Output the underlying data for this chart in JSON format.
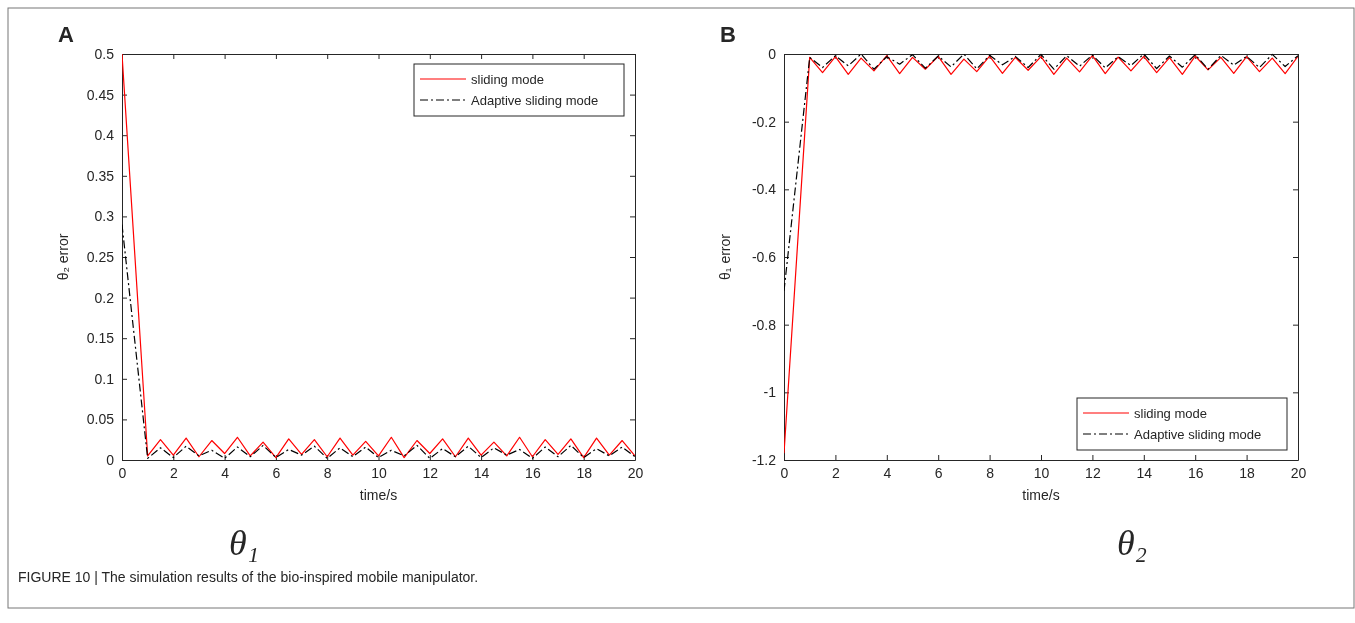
{
  "chart_data": [
    {
      "type": "line",
      "title": "A",
      "xlabel": "time/s",
      "ylabel": "θ₂ error",
      "x": [
        0,
        1,
        1.5,
        2,
        2.5,
        3,
        3.5,
        4,
        4.5,
        5,
        5.5,
        6,
        6.5,
        7,
        7.5,
        8,
        8.5,
        9,
        9.5,
        10,
        10.5,
        11,
        11.5,
        12,
        12.5,
        13,
        13.5,
        14,
        14.5,
        15,
        15.5,
        16,
        16.5,
        17,
        17.5,
        18,
        18.5,
        19,
        19.5,
        20
      ],
      "xlim": [
        0,
        20
      ],
      "xticks": [
        0,
        2,
        4,
        6,
        8,
        10,
        12,
        14,
        16,
        18,
        20
      ],
      "ylim": [
        0,
        0.5
      ],
      "yticks": [
        0,
        0.05,
        0.1,
        0.15,
        0.2,
        0.25,
        0.3,
        0.35,
        0.4,
        0.45,
        0.5
      ],
      "legend": "top right",
      "grid": false,
      "series": [
        {
          "name": "sliding mode",
          "color": "#ff0000",
          "line_style": "solid",
          "values": [
            0.5,
            0.005,
            0.025,
            0.006,
            0.027,
            0.004,
            0.024,
            0.008,
            0.028,
            0.005,
            0.022,
            0.003,
            0.026,
            0.007,
            0.025,
            0.004,
            0.027,
            0.006,
            0.023,
            0.005,
            0.028,
            0.003,
            0.024,
            0.008,
            0.026,
            0.004,
            0.027,
            0.006,
            0.022,
            0.005,
            0.028,
            0.004,
            0.025,
            0.007,
            0.026,
            0.003,
            0.027,
            0.006,
            0.024,
            0.005
          ]
        },
        {
          "name": "Adaptive sliding mode",
          "color": "#000000",
          "line_style": "dashdot",
          "values": [
            0.29,
            0.002,
            0.015,
            0.003,
            0.017,
            0.005,
            0.012,
            0.002,
            0.016,
            0.004,
            0.018,
            0.003,
            0.013,
            0.006,
            0.017,
            0.002,
            0.015,
            0.004,
            0.016,
            0.003,
            0.012,
            0.005,
            0.018,
            0.002,
            0.014,
            0.004,
            0.017,
            0.003,
            0.015,
            0.006,
            0.013,
            0.002,
            0.016,
            0.004,
            0.018,
            0.003,
            0.014,
            0.005,
            0.016,
            0.004
          ]
        }
      ],
      "annotations": [
        "θ₁",
        "FIGURE 10 | The simulation results of the bio-inspired mobile manipulator."
      ]
    },
    {
      "type": "line",
      "title": "B",
      "xlabel": "time/s",
      "ylabel": "θ₁ error",
      "x": [
        0,
        1,
        1.5,
        2,
        2.5,
        3,
        3.5,
        4,
        4.5,
        5,
        5.5,
        6,
        6.5,
        7,
        7.5,
        8,
        8.5,
        9,
        9.5,
        10,
        10.5,
        11,
        11.5,
        12,
        12.5,
        13,
        13.5,
        14,
        14.5,
        15,
        15.5,
        16,
        16.5,
        17,
        17.5,
        18,
        18.5,
        19,
        19.5,
        20
      ],
      "xlim": [
        0,
        20
      ],
      "xticks": [
        0,
        2,
        4,
        6,
        8,
        10,
        12,
        14,
        16,
        18,
        20
      ],
      "ylim": [
        -1.2,
        0
      ],
      "yticks": [
        -1.2,
        -1,
        -0.8,
        -0.6,
        -0.4,
        -0.2,
        0
      ],
      "legend": "bottom right",
      "grid": false,
      "series": [
        {
          "name": "sliding mode",
          "color": "#ff0000",
          "line_style": "solid",
          "values": [
            -1.18,
            -0.01,
            -0.055,
            -0.008,
            -0.06,
            -0.012,
            -0.05,
            -0.005,
            -0.058,
            -0.01,
            -0.045,
            -0.007,
            -0.06,
            -0.015,
            -0.052,
            -0.006,
            -0.057,
            -0.01,
            -0.048,
            -0.008,
            -0.06,
            -0.012,
            -0.053,
            -0.005,
            -0.058,
            -0.009,
            -0.05,
            -0.007,
            -0.055,
            -0.011,
            -0.06,
            -0.006,
            -0.047,
            -0.01,
            -0.057,
            -0.008,
            -0.052,
            -0.012,
            -0.058,
            -0.007
          ]
        },
        {
          "name": "Adaptive sliding mode",
          "color": "#000000",
          "line_style": "dashdot",
          "values": [
            -0.7,
            -0.01,
            -0.04,
            -0.005,
            -0.035,
            0,
            -0.045,
            -0.008,
            -0.03,
            -0.002,
            -0.042,
            -0.006,
            -0.038,
            0,
            -0.044,
            -0.004,
            -0.032,
            -0.007,
            -0.04,
            -0.001,
            -0.045,
            -0.005,
            -0.036,
            -0.003,
            -0.041,
            -0.008,
            -0.034,
            0,
            -0.043,
            -0.006,
            -0.039,
            -0.002,
            -0.045,
            -0.004,
            -0.033,
            -0.007,
            -0.04,
            -0.001,
            -0.037,
            -0.005
          ]
        }
      ],
      "annotations": [
        "θ₂"
      ]
    }
  ]
}
